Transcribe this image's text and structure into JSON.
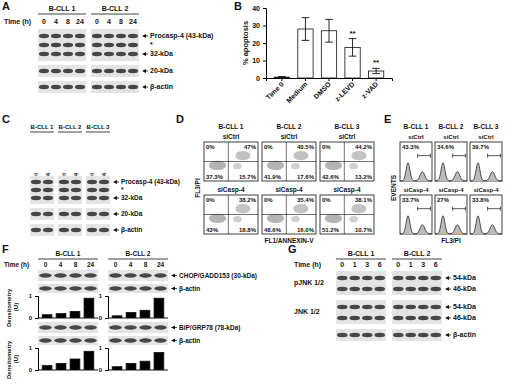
{
  "letters": [
    "A",
    "B",
    "C",
    "D",
    "E",
    "F",
    "G"
  ],
  "chart_data": [
    {
      "type": "bar",
      "categories": [
        "Time 0",
        "Medium",
        "DMSO",
        "z-LEVD",
        "z-VAD"
      ],
      "values": [
        0.5,
        28,
        27,
        17.5,
        4
      ],
      "errors": [
        0.3,
        6.5,
        6.5,
        5,
        1.5
      ],
      "ylabel": "% apoptosis",
      "ylim": [
        0,
        40
      ],
      "yticks": [
        0,
        10,
        20,
        30,
        40
      ],
      "color": "#ffffff",
      "annotations": [
        {
          "text": "**",
          "category": "z-LEVD"
        },
        {
          "text": "**",
          "category": "z-VAD"
        }
      ]
    },
    {
      "type": "bar",
      "categories": [
        null,
        null,
        null,
        null
      ],
      "values": [
        0.15,
        0.2,
        0.3,
        0.9
      ],
      "ylabel": "Densitometry (U)",
      "ylim": [
        0,
        1
      ],
      "yticks": [
        0,
        1
      ],
      "color": "#000000",
      "tick_labels": "y"
    },
    {
      "type": "bar",
      "categories": [
        null,
        null,
        null,
        null
      ],
      "values": [
        0.1,
        0.25,
        0.35,
        0.9
      ],
      "ylim": [
        0,
        1
      ],
      "yticks": [
        0,
        1
      ],
      "color": "#000000",
      "tick_labels": "y"
    },
    {
      "type": "bar",
      "categories": [
        null,
        null,
        null,
        null
      ],
      "values": [
        0.2,
        0.3,
        0.5,
        0.85
      ],
      "ylabel": "Densitometry (U)",
      "ylim": [
        0,
        1
      ],
      "yticks": [
        0,
        1
      ],
      "color": "#000000",
      "tick_labels": "y"
    },
    {
      "type": "bar",
      "categories": [
        null,
        null,
        null,
        null
      ],
      "values": [
        0.15,
        0.3,
        0.4,
        0.8
      ],
      "ylim": [
        0,
        1
      ],
      "yticks": [
        0,
        1
      ],
      "color": "#000000",
      "tick_labels": "y"
    }
  ],
  "panel_A": {
    "lane_title": "Time (h)",
    "groups": [
      "B-CLL 1",
      "B-CLL 2"
    ],
    "lanes": [
      "0",
      "4",
      "8",
      "24"
    ],
    "rows": [
      {
        "right": [
          "Procasp-4 (43-kDa)",
          "*",
          "32-kDa"
        ]
      },
      {
        "right": [
          "20-kDa"
        ]
      },
      {
        "right": [
          "β-actin"
        ]
      }
    ]
  },
  "panel_C": {
    "groups": [
      "B-CLL 1",
      "B-CLL 2",
      "B-CLL 3"
    ],
    "lanes": [
      "siCtrl",
      "siCasp-4"
    ],
    "rows": [
      {
        "right": [
          "Procasp-4 (43-kDa)",
          "*",
          "32-kDa"
        ]
      },
      {
        "right": [
          "20-kDa"
        ]
      },
      {
        "right": [
          "β-actin"
        ]
      }
    ]
  },
  "panel_D": {
    "groups": [
      "B-CLL 1",
      "B-CLL 2",
      "B-CLL 3"
    ],
    "conditions": [
      "siCtrl",
      "siCasp-4"
    ],
    "xlabel": "FL1/ANNEXIN-V",
    "ylabel": "FL3/PI",
    "quadrants": [
      [
        [
          "0%",
          "47%",
          "37.3%",
          "15.7%"
        ],
        [
          "0%",
          "40.5%",
          "41.9%",
          "17.6%"
        ],
        [
          "0%",
          "44.2%",
          "42.6%",
          "13.2%"
        ]
      ],
      [
        [
          "0%",
          "38.2%",
          "43%",
          "18.8%"
        ],
        [
          "0%",
          "35.4%",
          "48.6%",
          "16.0%"
        ],
        [
          "0%",
          "38.1%",
          "51.2%",
          "10.7%"
        ]
      ]
    ]
  },
  "panel_E": {
    "groups": [
      "B-CLL 1",
      "B-CLL 2",
      "B-CLL 3"
    ],
    "conditions": [
      "siCtrl",
      "siCasp-4"
    ],
    "xlabel": "FL3/PI",
    "ylabel": "EVENTS",
    "values": [
      [
        "43.3%",
        "34.6%",
        "39.7%"
      ],
      [
        "33.7%",
        "27%",
        "33.8%"
      ]
    ]
  },
  "panel_F": {
    "lane_title": "Time (h)",
    "groups": [
      "B-CLL 1",
      "B-CLL 2"
    ],
    "lanes": [
      "0",
      "4",
      "8",
      "24"
    ],
    "rows": [
      {
        "right": [
          "CHOP/GADD153 (30-kDa)"
        ]
      },
      {
        "right": [
          "β-actin"
        ]
      },
      {
        "right": [
          "BiP/GRP78 (78-kDa)"
        ]
      },
      {
        "right": [
          "β-actin"
        ]
      }
    ]
  },
  "panel_G": {
    "lane_title": "Time (h)",
    "groups": [
      "B-CLL 1",
      "B-CLL 2"
    ],
    "lanes": [
      "0",
      "1",
      "3",
      "6"
    ],
    "rows": [
      {
        "left": "pJNK 1/2",
        "right": [
          "54-kDa",
          "46-kDa"
        ]
      },
      {
        "left": "JNK 1/2",
        "right": [
          "54-kDa",
          "46-kDa"
        ]
      },
      {
        "right": [
          "β-actin"
        ]
      }
    ]
  }
}
